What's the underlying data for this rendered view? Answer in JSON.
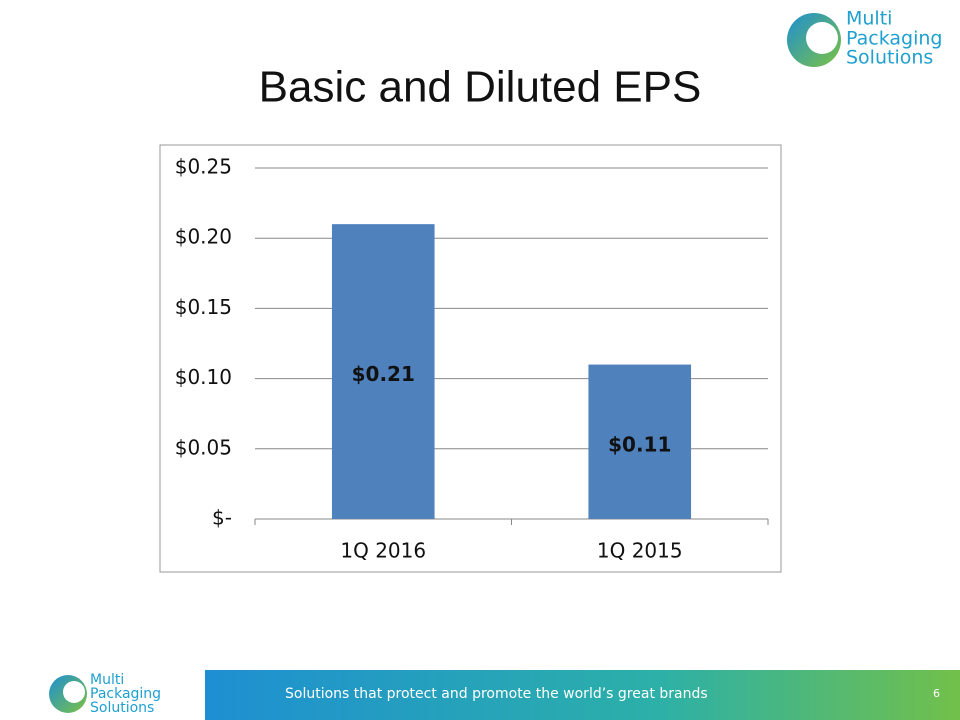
{
  "logo": {
    "lines": [
      "Multi",
      "Packaging",
      "Solutions"
    ]
  },
  "chart_data": {
    "type": "bar",
    "title": "Basic and Diluted EPS",
    "categories": [
      "1Q 2016",
      "1Q 2015"
    ],
    "values": [
      0.21,
      0.11
    ],
    "value_labels": [
      "$0.21",
      "$0.11"
    ],
    "color": "#4f81bd",
    "ylim": [
      0,
      0.25
    ],
    "yticks": [
      {
        "value": 0,
        "label": "$-"
      },
      {
        "value": 0.05,
        "label": "$0.05"
      },
      {
        "value": 0.1,
        "label": "$0.10"
      },
      {
        "value": 0.15,
        "label": "$0.15"
      },
      {
        "value": 0.2,
        "label": "$0.20"
      },
      {
        "value": 0.25,
        "label": "$0.25"
      }
    ],
    "grid": true
  },
  "footer": {
    "tagline": "Solutions that protect and promote the world’s great brands",
    "page_number": 6
  }
}
